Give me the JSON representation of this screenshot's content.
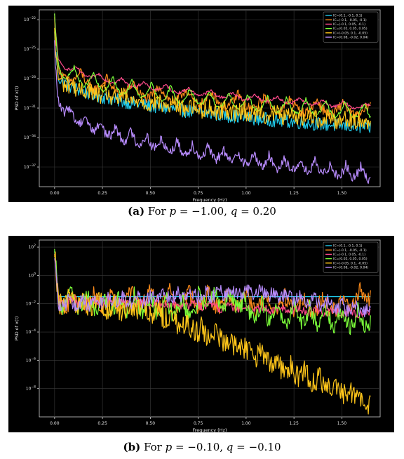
{
  "chart_data": [
    {
      "type": "line",
      "xlabel": "Frequency (Hz)",
      "ylabel": "PSD of x(t)",
      "yscale": "log",
      "xlim": [
        -0.08,
        1.7
      ],
      "ylim_exp": [
        -39,
        -21
      ],
      "x_ticks": [
        "0.00",
        "0.25",
        "0.50",
        "0.75",
        "1.00",
        "1.25",
        "1.50"
      ],
      "y_ticks": [
        -22,
        -25,
        -28,
        -31,
        -34,
        -37
      ],
      "grid": true,
      "legend_position": "top-right",
      "series": [
        {
          "name": "IC=(0.1, -0.1, 0.1)",
          "color": "#1fc8e8",
          "start_exp": -26.5,
          "end_exp": -33.0,
          "decay": 2.5,
          "noise": 0.7,
          "ripple": 0.0
        },
        {
          "name": "IC=(-0.1, -0.05, -0.1)",
          "color": "#ff8c1a",
          "start_exp": -25.0,
          "end_exp": -30.5,
          "decay": 2.0,
          "noise": 0.5,
          "ripple": 1.4
        },
        {
          "name": "IC=(-0.1, 0.05, -0.1)",
          "color": "#ff4a8a",
          "start_exp": -24.5,
          "end_exp": -30.5,
          "decay": 1.6,
          "noise": 0.15,
          "ripple": 0.6
        },
        {
          "name": "IC=(0.05, 0.05, 0.05)",
          "color": "#7cff3a",
          "start_exp": -24.5,
          "end_exp": -30.5,
          "decay": 1.8,
          "noise": 0.2,
          "ripple": 1.6
        },
        {
          "name": "IC=(-0.05, 0.1, -0.05)",
          "color": "#ffc61a",
          "start_exp": -26.5,
          "end_exp": -32.0,
          "decay": 2.2,
          "noise": 0.9,
          "ripple": 0.5
        },
        {
          "name": "IC=(0.08, -0.02, 0.04)",
          "color": "#b98cff",
          "start_exp": -27.5,
          "end_exp": -37.0,
          "decay": 1.8,
          "noise": 0.5,
          "ripple": 1.2
        }
      ],
      "caption": {
        "label": "(a)",
        "text_for": "For",
        "p": "−1.00",
        "q": "0.20"
      }
    },
    {
      "type": "line",
      "xlabel": "Frequency (Hz)",
      "ylabel": "PSD of x(t)",
      "yscale": "log",
      "xlim": [
        -0.08,
        1.7
      ],
      "ylim_exp": [
        -10,
        2.5
      ],
      "x_ticks": [
        "0.00",
        "0.25",
        "0.50",
        "0.75",
        "1.00",
        "1.25",
        "1.50"
      ],
      "y_ticks": [
        2,
        0,
        -2,
        -4,
        -6,
        -8
      ],
      "grid": true,
      "legend_position": "top-right",
      "series": [
        {
          "name": "IC=(0.1, -0.1, 0.1)",
          "color": "#1fc8e8",
          "start_exp": -1.5,
          "end_exp": -1.5,
          "decay": 0,
          "noise": 0.0,
          "ripple": 0.0
        },
        {
          "name": "IC=(-0.1, -0.05, -0.1)",
          "color": "#ff8c1a",
          "start_exp": -1.5,
          "end_exp": -0.5,
          "decay": 0,
          "noise": 0.6,
          "ripple": 1.0
        },
        {
          "name": "IC=(-0.1, 0.05, -0.1)",
          "color": "#ff4a8a",
          "start_exp": -1.5,
          "end_exp": -2.5,
          "decay": 0,
          "noise": 0.3,
          "ripple": 0.3
        },
        {
          "name": "IC=(0.05, 0.05, 0.05)",
          "color": "#7cff3a",
          "start_exp": -1.0,
          "end_exp": -3.5,
          "decay": 0,
          "noise": 0.6,
          "ripple": 1.2
        },
        {
          "name": "IC=(-0.05, 0.1, -0.05)",
          "color": "#ffc61a",
          "start_exp": -2.0,
          "end_exp": -8.7,
          "decay": 0,
          "noise": 0.8,
          "ripple": 0.5
        },
        {
          "name": "IC=(0.08, -0.02, 0.04)",
          "color": "#b98cff",
          "start_exp": -2.0,
          "end_exp": -2.5,
          "decay": 0,
          "noise": 0.5,
          "ripple": 0.5
        }
      ],
      "caption": {
        "label": "(b)",
        "text_for": "For",
        "p": "−0.10",
        "q": "−0.10"
      }
    }
  ]
}
